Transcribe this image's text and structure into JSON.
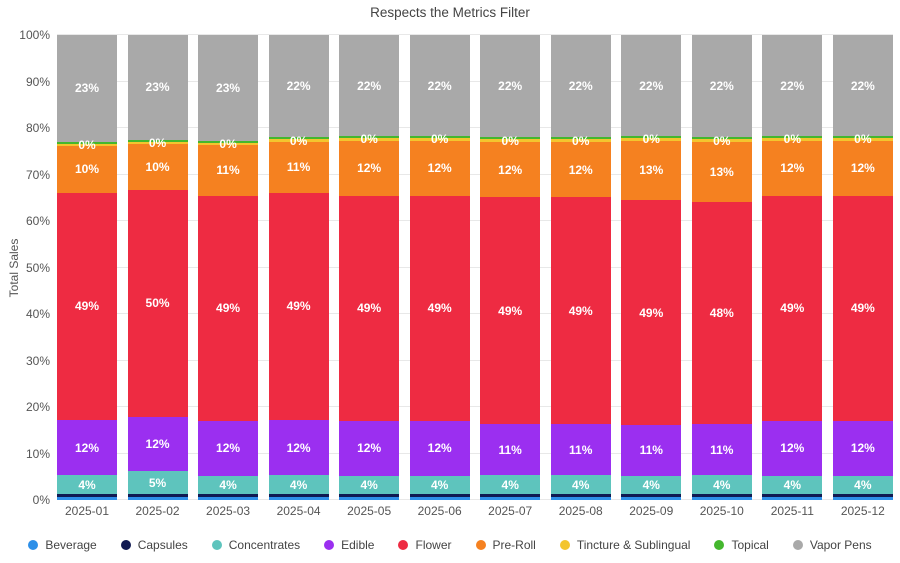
{
  "chart_data": {
    "type": "bar",
    "variant": "stacked-100-percent-column",
    "title": "Respects the Metrics Filter",
    "xlabel": "",
    "ylabel": "Total Sales",
    "ylim": [
      0,
      100
    ],
    "ytick_step": 10,
    "ytick_suffix": "%",
    "grid": true,
    "legend_position": "bottom",
    "categories": [
      "2025-01",
      "2025-02",
      "2025-03",
      "2025-04",
      "2025-05",
      "2025-06",
      "2025-07",
      "2025-08",
      "2025-09",
      "2025-10",
      "2025-11",
      "2025-12"
    ],
    "series": [
      {
        "name": "Beverage",
        "color": "#2D8FE8",
        "labels_shown": false,
        "values": [
          0.6,
          0.6,
          0.6,
          0.6,
          0.6,
          0.6,
          0.6,
          0.6,
          0.6,
          0.6,
          0.6,
          0.6
        ]
      },
      {
        "name": "Capsules",
        "color": "#101A52",
        "labels_shown": false,
        "values": [
          0.7,
          0.7,
          0.7,
          0.7,
          0.7,
          0.7,
          0.7,
          0.7,
          0.7,
          0.7,
          0.7,
          0.7
        ]
      },
      {
        "name": "Concentrates",
        "color": "#5EC4BD",
        "labels_shown": true,
        "values": [
          4,
          5,
          4,
          4,
          4,
          4,
          4,
          4,
          4,
          4,
          4,
          4
        ]
      },
      {
        "name": "Edible",
        "color": "#9B2FF0",
        "labels_shown": true,
        "values": [
          12,
          12,
          12,
          12,
          12,
          12,
          11,
          11,
          11,
          11,
          12,
          12
        ]
      },
      {
        "name": "Flower",
        "color": "#EE2B42",
        "labels_shown": true,
        "values": [
          49,
          50,
          49,
          49,
          49,
          49,
          49,
          49,
          49,
          48,
          49,
          49
        ]
      },
      {
        "name": "Pre-Roll",
        "color": "#F58120",
        "labels_shown": true,
        "values": [
          10,
          10,
          11,
          11,
          12,
          12,
          12,
          12,
          13,
          13,
          12,
          12
        ]
      },
      {
        "name": "Tincture & Sublingual",
        "color": "#F3C52E",
        "labels_shown": true,
        "label_override": "0%",
        "values": [
          0.5,
          0.5,
          0.5,
          0.5,
          0.5,
          0.5,
          0.5,
          0.5,
          0.5,
          0.5,
          0.5,
          0.5
        ]
      },
      {
        "name": "Topical",
        "color": "#44B72E",
        "labels_shown": false,
        "values": [
          0.5,
          0.5,
          0.5,
          0.5,
          0.5,
          0.5,
          0.5,
          0.5,
          0.5,
          0.5,
          0.5,
          0.5
        ]
      },
      {
        "name": "Vapor Pens",
        "color": "#A9A9A9",
        "labels_shown": true,
        "values": [
          23,
          23,
          23,
          22,
          22,
          22,
          22,
          22,
          22,
          22,
          22,
          22
        ]
      }
    ]
  }
}
